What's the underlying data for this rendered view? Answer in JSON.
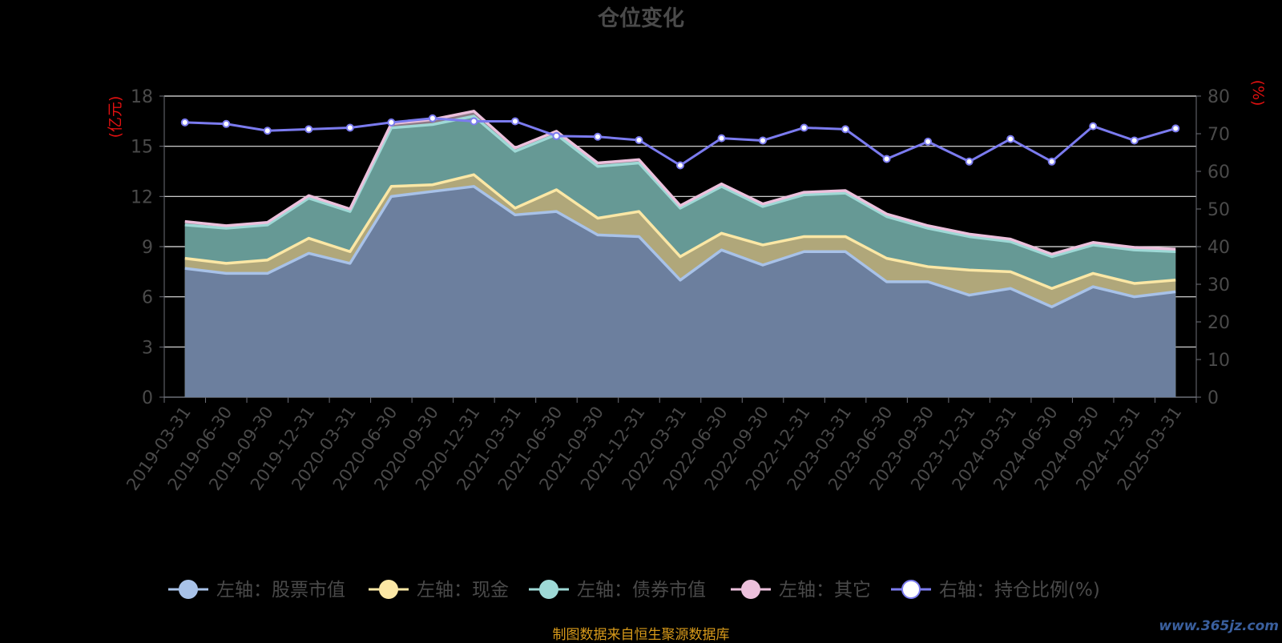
{
  "chart_data": {
    "type": "area",
    "title": "仓位变化",
    "left_unit": "(亿元)",
    "right_unit": "(%)",
    "categories": [
      "2019-03-31",
      "2019-06-30",
      "2019-09-30",
      "2019-12-31",
      "2020-03-31",
      "2020-06-30",
      "2020-09-30",
      "2020-12-31",
      "2021-03-31",
      "2021-06-30",
      "2021-09-30",
      "2021-12-31",
      "2022-03-31",
      "2022-06-30",
      "2022-09-30",
      "2022-12-31",
      "2023-03-31",
      "2023-06-30",
      "2023-09-30",
      "2023-12-31",
      "2024-03-31",
      "2024-06-30",
      "2024-09-30",
      "2024-12-31",
      "2025-03-31"
    ],
    "left_axis": {
      "min": 0,
      "max": 18,
      "ticks": [
        0,
        3,
        6,
        9,
        12,
        15,
        18
      ]
    },
    "right_axis": {
      "min": 0,
      "max": 80,
      "ticks": [
        0,
        10,
        20,
        30,
        40,
        50,
        60,
        70,
        80
      ]
    },
    "stacked_series": [
      {
        "name": "左轴：股票市值",
        "color": "#a8c2e8",
        "fill": "#6c7f9e",
        "values": [
          7.7,
          7.4,
          7.4,
          8.6,
          8.0,
          12.0,
          12.3,
          12.6,
          10.9,
          11.1,
          9.7,
          9.6,
          7.0,
          8.8,
          7.9,
          8.7,
          8.7,
          6.9,
          6.9,
          6.1,
          6.5,
          5.4,
          6.6,
          6.0,
          6.3
        ]
      },
      {
        "name": "左轴：现金",
        "color": "#fbe7a5",
        "fill": "#b0a77a",
        "values": [
          0.6,
          0.6,
          0.8,
          0.9,
          0.7,
          0.6,
          0.4,
          0.7,
          0.4,
          1.3,
          1.0,
          1.5,
          1.4,
          1.0,
          1.2,
          0.9,
          0.9,
          1.4,
          0.9,
          1.5,
          1.0,
          1.1,
          0.8,
          0.8,
          0.7
        ]
      },
      {
        "name": "左轴：债券市值",
        "color": "#9ed9d6",
        "fill": "#669995",
        "values": [
          2.0,
          2.1,
          2.1,
          2.4,
          2.4,
          3.5,
          3.6,
          3.5,
          3.4,
          3.3,
          3.1,
          2.9,
          2.9,
          2.8,
          2.3,
          2.5,
          2.6,
          2.5,
          2.3,
          2.0,
          1.8,
          1.9,
          1.7,
          2.0,
          1.7
        ]
      },
      {
        "name": "左轴：其它",
        "color": "#ecc0dc",
        "fill": "#8c7a86",
        "values": [
          0.2,
          0.15,
          0.15,
          0.15,
          0.15,
          0.25,
          0.3,
          0.3,
          0.2,
          0.2,
          0.2,
          0.2,
          0.15,
          0.15,
          0.15,
          0.15,
          0.15,
          0.15,
          0.15,
          0.15,
          0.15,
          0.15,
          0.15,
          0.15,
          0.15
        ]
      }
    ],
    "line_series": {
      "name": "右轴：持仓比例(%)",
      "color": "#7b7bef",
      "values": [
        73.0,
        72.6,
        70.8,
        71.2,
        71.6,
        73.0,
        74.1,
        73.3,
        73.3,
        69.4,
        69.2,
        68.3,
        61.6,
        68.8,
        68.2,
        71.6,
        71.2,
        63.3,
        67.9,
        62.6,
        68.6,
        62.6,
        72.0,
        68.2,
        71.4
      ]
    },
    "grid": true,
    "legend_position": "bottom"
  },
  "footer": {
    "source": "制图数据来自恒生聚源数据库",
    "watermark": "www.365jz.com"
  }
}
